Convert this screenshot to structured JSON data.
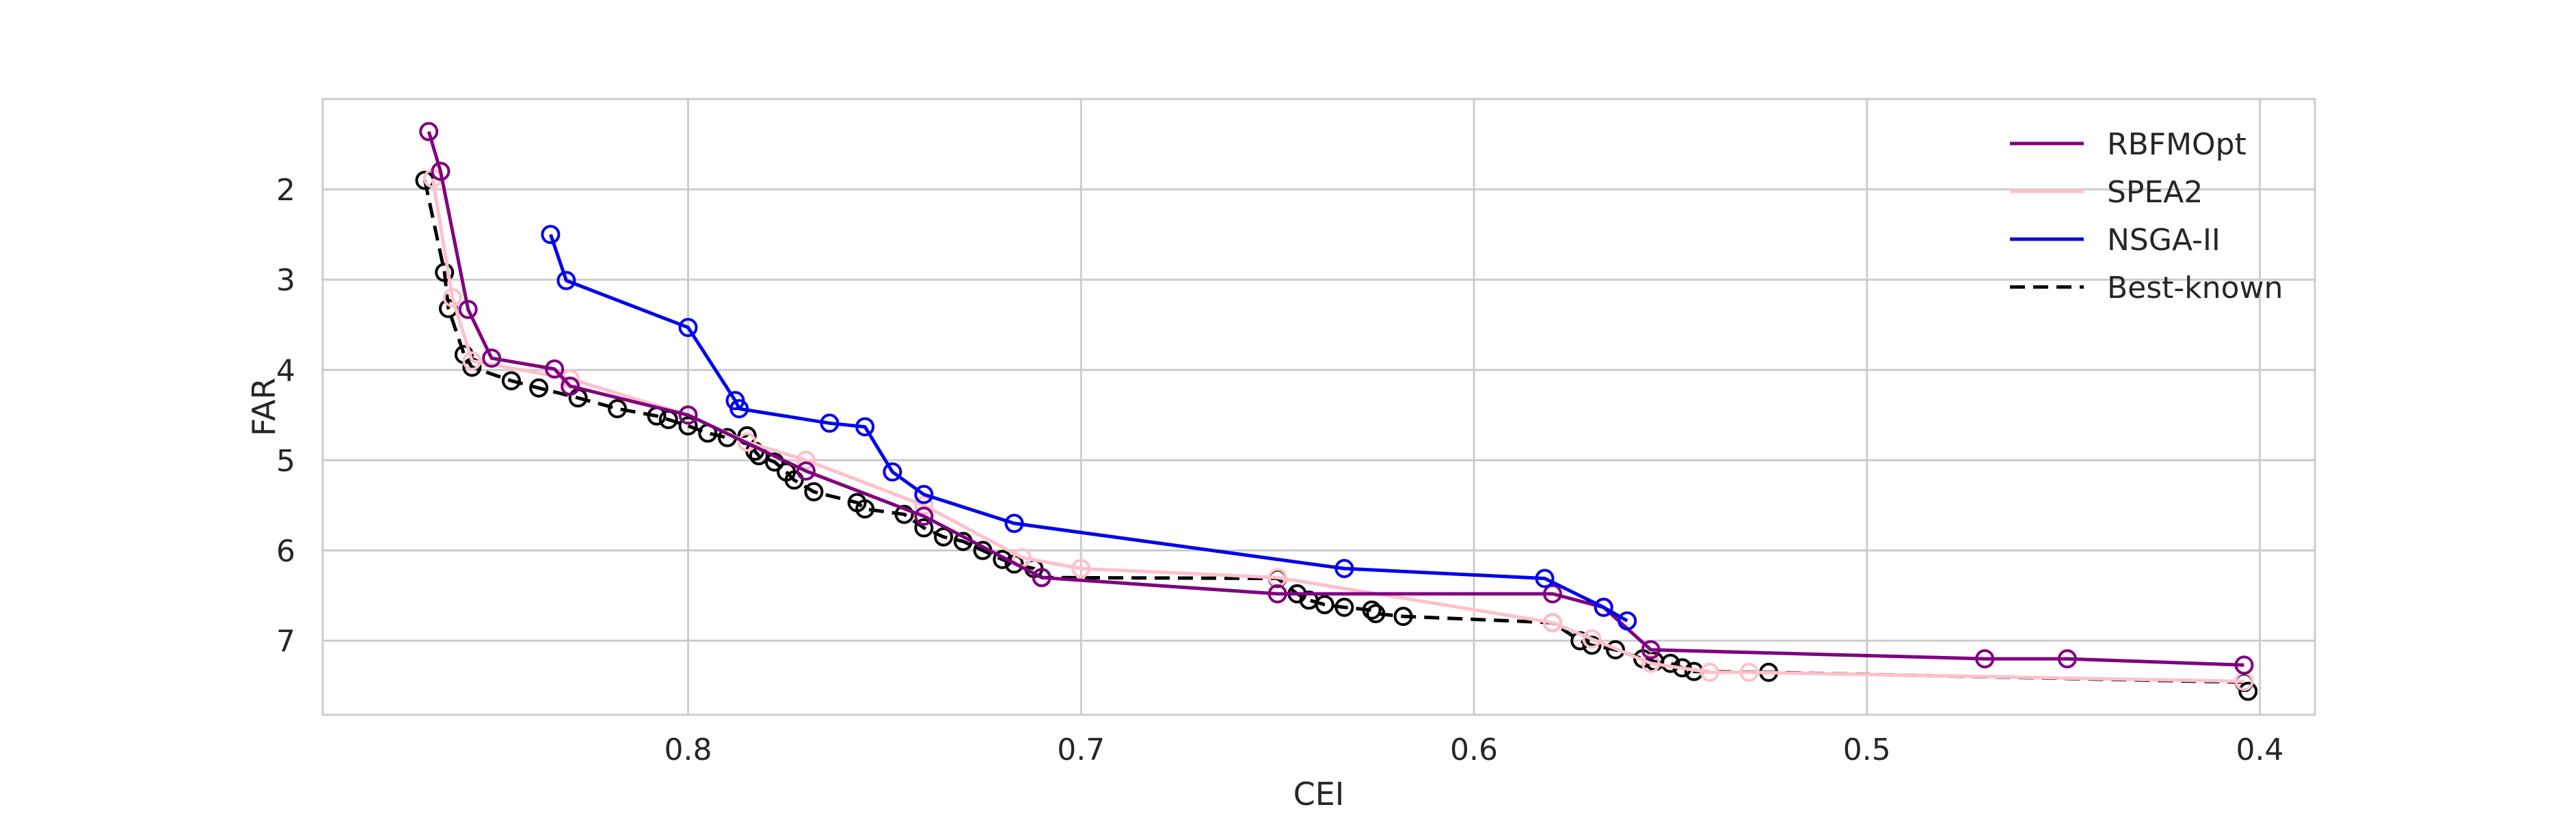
{
  "chart_data": {
    "type": "line",
    "title": "",
    "xlabel": "CEI",
    "ylabel": "FAR",
    "xlim": [
      0.893,
      0.386
    ],
    "ylim": [
      7.82,
      1.0
    ],
    "x_inverted": true,
    "y_inverted": true,
    "xticks": [
      0.8,
      0.7,
      0.6,
      0.5,
      0.4
    ],
    "yticks": [
      2,
      3,
      4,
      5,
      6,
      7
    ],
    "grid": true,
    "legend": {
      "placement": "top-right"
    },
    "series": [
      {
        "name": "RBFMOpt",
        "color": "#800080",
        "linestyle": "solid",
        "x": [
          0.866,
          0.863,
          0.856,
          0.85,
          0.834,
          0.83,
          0.8,
          0.77,
          0.74,
          0.71,
          0.65,
          0.58,
          0.567,
          0.555,
          0.47,
          0.449,
          0.404
        ],
        "y": [
          1.36,
          1.8,
          3.33,
          3.87,
          3.99,
          4.18,
          4.5,
          5.12,
          5.62,
          6.3,
          6.48,
          6.48,
          6.63,
          7.1,
          7.2,
          7.2,
          7.27
        ]
      },
      {
        "name": "SPEA2",
        "color": "#ffc0cb",
        "linestyle": "solid",
        "x": [
          0.865,
          0.86,
          0.855,
          0.83,
          0.8,
          0.785,
          0.77,
          0.74,
          0.715,
          0.7,
          0.65,
          0.58,
          0.57,
          0.555,
          0.54,
          0.53,
          0.404
        ],
        "y": [
          1.88,
          3.2,
          3.9,
          4.1,
          4.5,
          4.8,
          5.0,
          5.5,
          6.08,
          6.2,
          6.3,
          6.8,
          6.98,
          7.25,
          7.35,
          7.35,
          7.45
        ]
      },
      {
        "name": "NSGA-II",
        "color": "#0000ee",
        "linestyle": "solid",
        "x": [
          0.835,
          0.831,
          0.8,
          0.788,
          0.787,
          0.764,
          0.755,
          0.748,
          0.74,
          0.717,
          0.633,
          0.582,
          0.567,
          0.561
        ],
        "y": [
          2.5,
          3.01,
          3.53,
          4.34,
          4.43,
          4.59,
          4.63,
          5.13,
          5.38,
          5.7,
          6.2,
          6.31,
          6.63,
          6.78
        ]
      },
      {
        "name": "Best-known",
        "color": "#000000",
        "linestyle": "dashed",
        "x": [
          0.867,
          0.862,
          0.861,
          0.857,
          0.855,
          0.845,
          0.838,
          0.828,
          0.818,
          0.808,
          0.805,
          0.8,
          0.795,
          0.79,
          0.785,
          0.783,
          0.782,
          0.778,
          0.775,
          0.773,
          0.768,
          0.757,
          0.755,
          0.745,
          0.74,
          0.735,
          0.73,
          0.725,
          0.72,
          0.717,
          0.712,
          0.71,
          0.65,
          0.645,
          0.642,
          0.638,
          0.633,
          0.626,
          0.625,
          0.618,
          0.58,
          0.573,
          0.57,
          0.564,
          0.557,
          0.554,
          0.55,
          0.547,
          0.544,
          0.525,
          0.404,
          0.403
        ],
        "y": [
          1.9,
          2.92,
          3.32,
          3.83,
          3.97,
          4.12,
          4.2,
          4.31,
          4.43,
          4.51,
          4.55,
          4.62,
          4.7,
          4.75,
          4.73,
          4.9,
          4.95,
          5.02,
          5.13,
          5.22,
          5.35,
          5.47,
          5.54,
          5.6,
          5.75,
          5.85,
          5.9,
          6.0,
          6.1,
          6.15,
          6.2,
          6.3,
          6.31,
          6.48,
          6.55,
          6.6,
          6.63,
          6.66,
          6.7,
          6.73,
          6.8,
          7.0,
          7.05,
          7.1,
          7.2,
          7.23,
          7.25,
          7.3,
          7.34,
          7.35,
          7.46,
          7.56
        ]
      }
    ]
  }
}
